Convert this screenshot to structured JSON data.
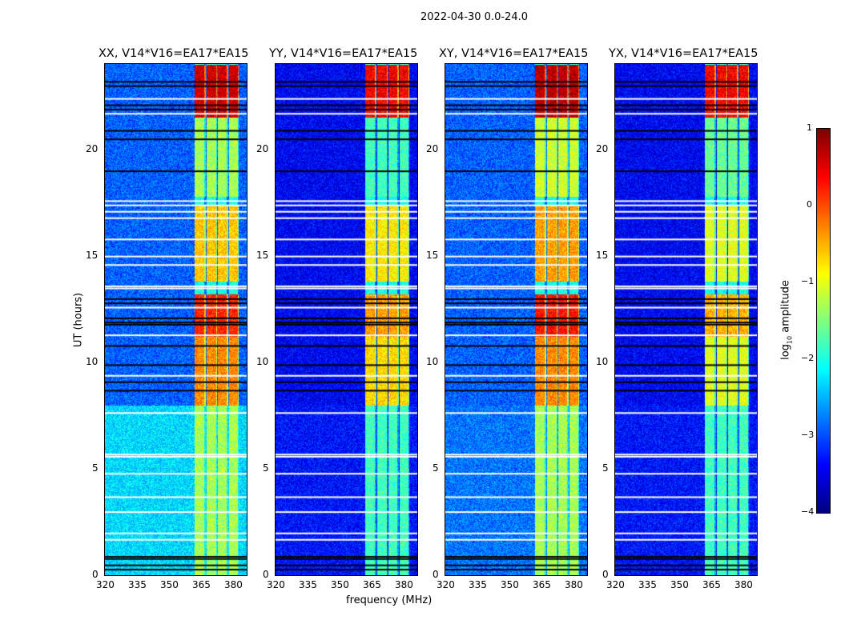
{
  "chart_data": {
    "type": "heatmap",
    "suptitle": "2022-04-30 0.0-24.0",
    "xlabel": "frequency (MHz)",
    "ylabel": "UT (hours)",
    "xlim": [
      320,
      386.4
    ],
    "ylim": [
      0,
      24
    ],
    "xticks": [
      "320",
      "335",
      "350",
      "365",
      "380"
    ],
    "xtick_values": [
      320,
      335,
      350,
      365,
      380
    ],
    "yticks": [
      "0",
      "5",
      "10",
      "15",
      "20"
    ],
    "ytick_values": [
      0,
      5,
      10,
      15,
      20
    ],
    "colorbar": {
      "label": "log10 amplitude",
      "label_main": "log",
      "label_sub": "10",
      "label_rest": " amplitude",
      "colormap": "jet",
      "range": [
        -4,
        1
      ],
      "ticks": [
        "1",
        "0",
        "−1",
        "−2",
        "−3",
        "−4"
      ],
      "tick_values": [
        1,
        0,
        -1,
        -2,
        -3,
        -4
      ]
    },
    "bright_channels_mhz": [
      [
        362,
        367
      ],
      [
        367.3,
        372.5
      ],
      [
        372.8,
        377.6
      ],
      [
        378,
        382.5
      ]
    ],
    "flagged_white_ut": [
      22.4,
      21.7,
      17.6,
      17.4,
      17.1,
      16.8,
      15.8,
      15.0,
      14.6,
      13.6,
      13.5,
      12.6,
      11.3,
      9.4,
      7.65,
      5.7,
      5.6,
      4.8,
      3.7,
      3.0,
      2.0,
      1.7
    ],
    "flagged_black_ut": [
      23.2,
      23.0,
      22.1,
      21.9,
      20.9,
      20.5,
      19.0,
      13.0,
      12.8,
      12.1,
      11.9,
      11.8,
      10.8,
      9.9,
      9.1,
      8.7,
      0.9,
      0.8,
      0.5,
      0.3
    ],
    "panels": [
      {
        "title": "XX, V14*V16=EA17*EA15",
        "background_log_amp": -2.9,
        "background_0_8h_log_amp": -2.3,
        "band_log_amp": [
          {
            "ut": [
              0,
              8
            ],
            "value": -1.3
          },
          {
            "ut": [
              8,
              11.2
            ],
            "value": -0.3
          },
          {
            "ut": [
              11.2,
              13.2
            ],
            "value": 0.2
          },
          {
            "ut": [
              13.8,
              17.4
            ],
            "value": -0.6
          },
          {
            "ut": [
              17.8,
              21.5
            ],
            "value": -1.3
          },
          {
            "ut": [
              21.5,
              24
            ],
            "value": 0.6
          }
        ]
      },
      {
        "title": "YY, V14*V16=EA17*EA15",
        "background_log_amp": -3.4,
        "background_0_8h_log_amp": -3.3,
        "band_log_amp": [
          {
            "ut": [
              0,
              8
            ],
            "value": -1.8
          },
          {
            "ut": [
              8,
              11.2
            ],
            "value": -0.7
          },
          {
            "ut": [
              11.2,
              13.2
            ],
            "value": -0.4
          },
          {
            "ut": [
              13.8,
              17.4
            ],
            "value": -0.8
          },
          {
            "ut": [
              17.8,
              21.5
            ],
            "value": -1.8
          },
          {
            "ut": [
              21.5,
              24
            ],
            "value": 0.4
          }
        ]
      },
      {
        "title": "XY, V14*V16=EA17*EA15",
        "background_log_amp": -2.9,
        "background_0_8h_log_amp": -2.8,
        "band_log_amp": [
          {
            "ut": [
              0,
              8
            ],
            "value": -1.3
          },
          {
            "ut": [
              8,
              11.2
            ],
            "value": -0.3
          },
          {
            "ut": [
              11.2,
              13.2
            ],
            "value": 0.3
          },
          {
            "ut": [
              13.8,
              17.4
            ],
            "value": -0.4
          },
          {
            "ut": [
              17.8,
              21.5
            ],
            "value": -1.1
          },
          {
            "ut": [
              21.5,
              24
            ],
            "value": 0.7
          }
        ]
      },
      {
        "title": "YX, V14*V16=EA17*EA15",
        "background_log_amp": -3.4,
        "background_0_8h_log_amp": -3.3,
        "band_log_amp": [
          {
            "ut": [
              0,
              8
            ],
            "value": -1.8
          },
          {
            "ut": [
              8,
              11.2
            ],
            "value": -1.0
          },
          {
            "ut": [
              11.2,
              13.2
            ],
            "value": -0.5
          },
          {
            "ut": [
              13.8,
              17.4
            ],
            "value": -1.0
          },
          {
            "ut": [
              17.8,
              21.5
            ],
            "value": -1.6
          },
          {
            "ut": [
              21.5,
              24
            ],
            "value": 0.4
          }
        ]
      }
    ]
  }
}
